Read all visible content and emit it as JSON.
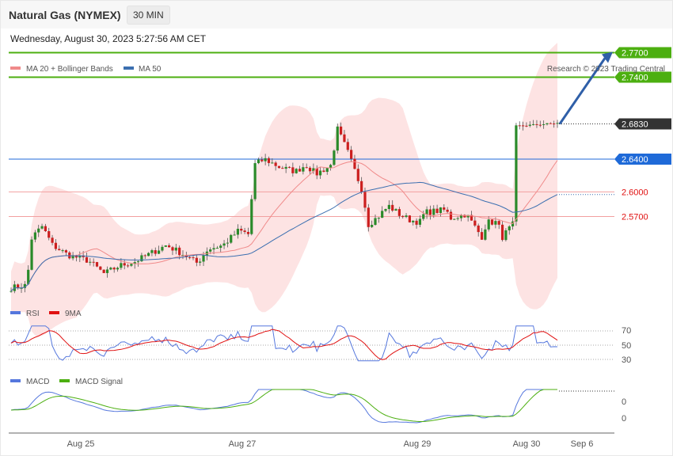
{
  "header": {
    "title": "Natural Gas (NYMEX)",
    "timeframe": "30 MIN",
    "datetime": "Wednesday, August 30, 2023 5:27:56 AM CET"
  },
  "copyright": "Research © 2023 Trading Central",
  "chart_data": [
    {
      "type": "candlestick",
      "legend": [
        {
          "name": "MA 20 + Bollinger Bands",
          "color": "#f08a8a"
        },
        {
          "name": "MA 50",
          "color": "#3b6fb0"
        }
      ],
      "legend_position": "top-left",
      "ylim": [
        2.45,
        2.81
      ],
      "x_categories": [
        "Aug 25",
        "Aug 27",
        "Aug 29",
        "Aug 30",
        "Sep 6"
      ],
      "last_price": "2.6830",
      "levels": [
        {
          "label": "2.7700",
          "value": 2.77,
          "kind": "resistance",
          "color": "#4caf10"
        },
        {
          "label": "2.7400",
          "value": 2.74,
          "kind": "resistance",
          "color": "#4caf10"
        },
        {
          "label": "2.6400",
          "value": 2.64,
          "kind": "pivot",
          "color": "#1f6ad8"
        },
        {
          "label": "2.6000",
          "value": 2.6,
          "kind": "support",
          "color": "#e01010"
        },
        {
          "label": "2.5700",
          "value": 2.57,
          "kind": "support",
          "color": "#e01010"
        }
      ],
      "projection": {
        "from": 2.683,
        "to": 2.768
      }
    },
    {
      "type": "line",
      "legend": [
        {
          "name": "RSI",
          "color": "#5577dd"
        },
        {
          "name": "9MA",
          "color": "#e01010"
        }
      ],
      "y_ticks": [
        "70",
        "50",
        "30"
      ]
    },
    {
      "type": "line",
      "legend": [
        {
          "name": "MACD",
          "color": "#5577dd"
        },
        {
          "name": "MACD Signal",
          "color": "#4caf10"
        }
      ],
      "y_ticks": [
        "0",
        "0"
      ]
    }
  ]
}
